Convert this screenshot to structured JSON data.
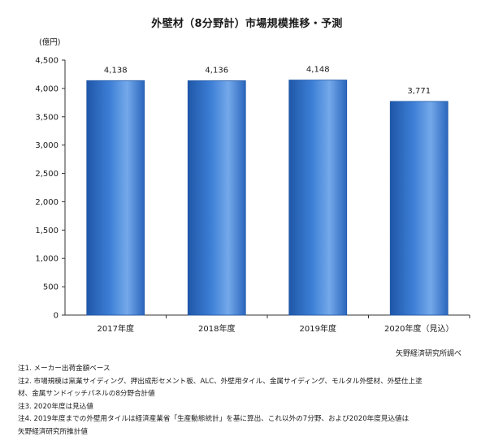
{
  "chart_data": {
    "type": "bar",
    "title": "外壁材（8分野計）市場規模推移・予測",
    "unit_label": "(億円)",
    "categories": [
      "2017年度",
      "2018年度",
      "2019年度",
      "2020年度（見込）"
    ],
    "values": [
      4138,
      4136,
      4148,
      3771
    ],
    "value_labels": [
      "4,138",
      "4,136",
      "4,148",
      "3,771"
    ],
    "ylim": [
      0,
      4500
    ],
    "yticks": [
      0,
      500,
      1000,
      1500,
      2000,
      2500,
      3000,
      3500,
      4000,
      4500
    ],
    "ytick_labels": [
      "0",
      "500",
      "1,000",
      "1,500",
      "2,000",
      "2,500",
      "3,000",
      "3,500",
      "4,000",
      "4,500"
    ],
    "grid": false,
    "bar_color": "#3d7fd6",
    "bar_dark": "#1f57a8",
    "bar_light": "#74a9ea"
  },
  "source": "矢野経済研究所調べ",
  "notes": [
    "注1. メーカー出荷金額ベース",
    "注2. 市場規模は窯業サイディング、押出成形セメント板、ALC、外壁用タイル、金属サイディング、モルタル外壁材、外壁仕上塗",
    "材、金属サンドイッチパネルの8分野合計値",
    "注3. 2020年度は見込値",
    "注4. 2019年度までの外壁用タイルは経済産業省「生産動態統計」を基に算出、これ以外の7分野、および2020年度見込値は",
    "矢野経済研究所推計値"
  ]
}
